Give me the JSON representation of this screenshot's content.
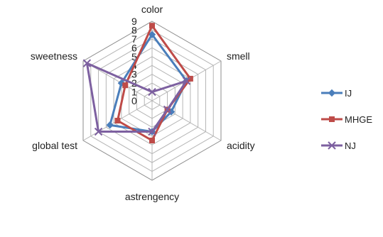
{
  "chart_data": {
    "type": "radar",
    "axes": [
      "color",
      "smell",
      "acidity",
      "astrengency",
      "global test",
      "sweetness"
    ],
    "range": [
      0,
      9
    ],
    "ticks": [
      "0",
      "1",
      "2",
      "3",
      "4",
      "5",
      "6",
      "7",
      "8",
      "9"
    ],
    "grid": true,
    "legend_position": "right",
    "series": [
      {
        "name": "IJ",
        "values": [
          7.5,
          4.5,
          2.5,
          3.5,
          5.5,
          4.0
        ],
        "color": "#4a7ebb",
        "marker": "diamond"
      },
      {
        "name": "MHGE",
        "values": [
          8.5,
          5.0,
          2.0,
          4.5,
          4.5,
          3.5
        ],
        "color": "#be4b48",
        "marker": "square"
      },
      {
        "name": "NJ",
        "values": [
          1.0,
          4.5,
          2.0,
          3.5,
          7.0,
          8.5
        ],
        "color": "#7d60a0",
        "marker": "x"
      }
    ]
  }
}
